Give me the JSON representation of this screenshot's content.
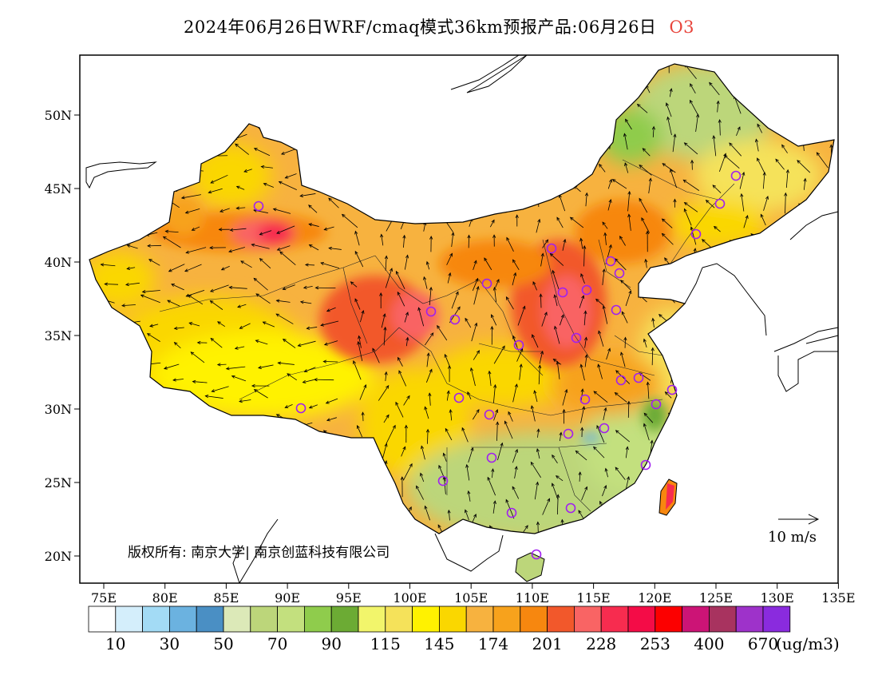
{
  "title": {
    "text": "2024年06月26日WRF/cmaq模式36km预报产品:06月26日",
    "variable": "O3",
    "variable_color": "#e8453c"
  },
  "map": {
    "lon_labels": [
      "75E",
      "80E",
      "85E",
      "90E",
      "95E",
      "100E",
      "105E",
      "110E",
      "115E",
      "120E",
      "125E",
      "130E",
      "135E"
    ],
    "lat_labels": [
      "50N",
      "45N",
      "40N",
      "35N",
      "30N",
      "25N",
      "20N"
    ],
    "copyright": "版权所有: 南京大学| 南京创蓝科技有限公司",
    "wind_reference": "10 m/s"
  },
  "legend": {
    "colors": [
      "#ffffff",
      "#d4eefb",
      "#a3dbf5",
      "#6bb2e0",
      "#4a8fc4",
      "#dce9b8",
      "#bcd67a",
      "#c3e07e",
      "#8fcc4c",
      "#6cab34",
      "#f2f56b",
      "#f5e25a",
      "#fff200",
      "#fad700",
      "#f7b23f",
      "#f7a21c",
      "#f7870f",
      "#f2582b",
      "#f96464",
      "#f72c4f",
      "#f40c47",
      "#fc0000",
      "#cc1476",
      "#a8335f",
      "#9e32ca",
      "#8a2bde"
    ],
    "labels": [
      "10",
      "30",
      "50",
      "70",
      "90",
      "115",
      "145",
      "174",
      "201",
      "228",
      "253",
      "400",
      "670"
    ],
    "units": "(ug/m3)"
  }
}
